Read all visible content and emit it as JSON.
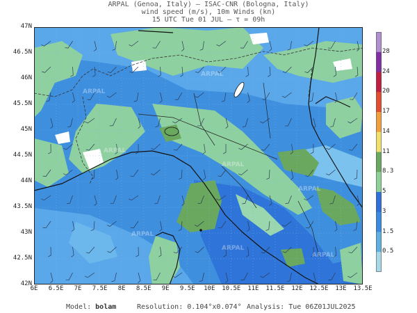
{
  "header": {
    "line1": "ARPAL (Genoa, Italy)  –  ISAC-CNR (Bologna, Italy)",
    "line2": "wind speed (m/s), 10m Winds (kn)",
    "line3": "15 UTC Tue 01 JUL  –  τ = 09h"
  },
  "axes": {
    "lat_labels": [
      "47N",
      "46.5N",
      "46N",
      "45.5N",
      "45N",
      "44.5N",
      "44N",
      "43.5N",
      "43N",
      "42.5N",
      "42N"
    ],
    "lon_labels": [
      "6E",
      "6.5E",
      "7E",
      "7.5E",
      "8E",
      "8.5E",
      "9E",
      "9.5E",
      "10E",
      "10.5E",
      "11E",
      "11.5E",
      "12E",
      "12.5E",
      "13E",
      "13.5E"
    ],
    "lat_range": [
      42,
      47
    ],
    "lon_range": [
      6,
      13.5
    ]
  },
  "colorbar": {
    "labels": [
      "0.5",
      "1.5",
      "3",
      "5",
      "8.3",
      "11",
      "14",
      "17",
      "20",
      "24",
      "28"
    ],
    "colors": [
      "#a8d8e8",
      "#5fb0e0",
      "#3a8be0",
      "#2e6fd8",
      "#8fcf9a",
      "#6aa860",
      "#f0e070",
      "#f0a040",
      "#e05030",
      "#c02040",
      "#8030a0",
      "#b090d0"
    ]
  },
  "footer": {
    "model_label": "Model:",
    "model_value": "bolam",
    "resolution_label": "Resolution:",
    "resolution_value": "0.104°x0.074°",
    "analysis_label": "Analysis:",
    "analysis_value": "Tue 06Z01JUL2025"
  },
  "watermark": "ARPAL"
}
